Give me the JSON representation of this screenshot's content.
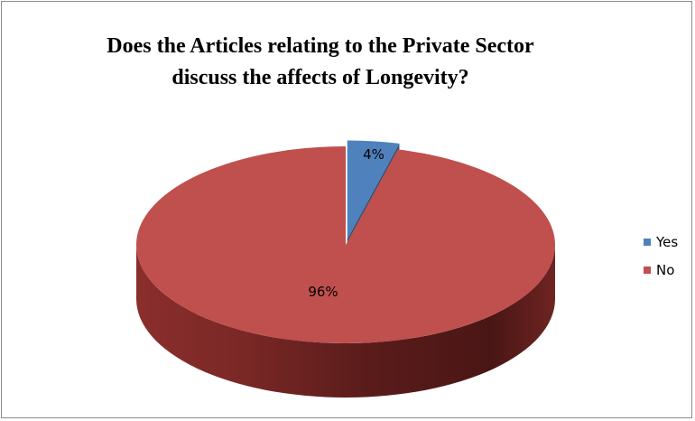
{
  "chart_data": {
    "type": "pie",
    "title_lines": [
      "Does the Articles relating to the Private Sector",
      "discuss the affects of Longevity?"
    ],
    "categories": [
      "Yes",
      "No"
    ],
    "values": [
      4,
      96
    ],
    "data_labels": [
      "4%",
      "96%"
    ],
    "colors": [
      "#4f81bd",
      "#c0504d"
    ],
    "exploded": [
      "Yes"
    ],
    "style": "3d",
    "legend_position": "right"
  }
}
